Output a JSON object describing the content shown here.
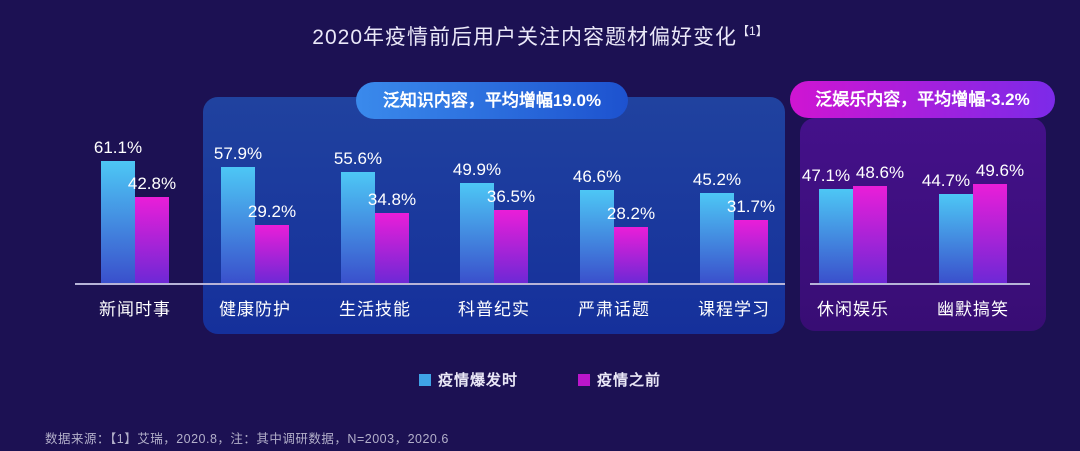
{
  "title": {
    "text": "2020年疫情前后用户关注内容题材偏好变化",
    "ref": "【1】"
  },
  "annotations": {
    "knowledge": "泛知识内容，平均增幅19.0%",
    "entertainment": "泛娱乐内容，平均增幅-3.2%"
  },
  "legend": {
    "items": [
      {
        "label": "疫情爆发时",
        "color": "#3fa3e6"
      },
      {
        "label": "疫情之前",
        "color": "#bb16cc"
      }
    ]
  },
  "footer": "数据来源：【1】艾瑞，2020.8，注：其中调研数据，N=2003，2020.6",
  "colors": {
    "background": "#1c1153",
    "knowledge_panel": "#1b3a9e",
    "entertainment_panel": "#3e0f80",
    "bar_during": [
      "#4dc7f5",
      "#3a50cc"
    ],
    "bar_before": [
      "#ea1ed8",
      "#6e28d6"
    ],
    "pill_knowledge": [
      "#3a8aec",
      "#1d52cf"
    ],
    "pill_entertainment": [
      "#cf15d2",
      "#7c2ae8"
    ],
    "baseline": "#b7b4d8",
    "title_text": "#eae8f8"
  },
  "chart_data": {
    "type": "bar",
    "title": "2020年疫情前后用户关注内容题材偏好变化【1】",
    "categories": [
      "新闻时事",
      "健康防护",
      "生活技能",
      "科普纪实",
      "严肃话题",
      "课程学习",
      "休闲娱乐",
      "幽默搞笑"
    ],
    "series": [
      {
        "name": "疫情爆发时",
        "values": [
          61.1,
          57.9,
          55.6,
          49.9,
          46.6,
          45.2,
          47.1,
          44.7
        ]
      },
      {
        "name": "疫情之前",
        "values": [
          42.8,
          29.2,
          34.8,
          36.5,
          28.2,
          31.7,
          48.6,
          49.6
        ]
      }
    ],
    "unit": "%",
    "value_labels": true,
    "ylim": [
      0,
      70
    ],
    "grid": false,
    "legend_position": "bottom",
    "group_annotations": [
      {
        "label": "泛知识内容，平均增幅19.0%",
        "categories": [
          "健康防护",
          "生活技能",
          "科普纪实",
          "严肃话题",
          "课程学习"
        ]
      },
      {
        "label": "泛娱乐内容，平均增幅-3.2%",
        "categories": [
          "休闲娱乐",
          "幽默搞笑"
        ]
      }
    ],
    "footnote": "数据来源：【1】艾瑞，2020.8，注：其中调研数据，N=2003，2020.6"
  }
}
